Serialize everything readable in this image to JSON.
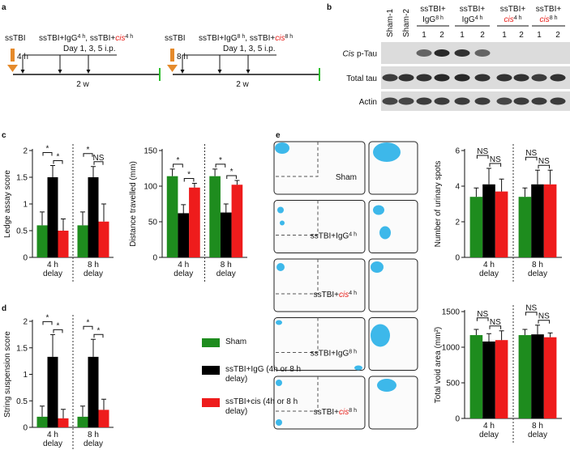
{
  "panel_labels": [
    "a",
    "b",
    "c",
    "d",
    "e"
  ],
  "timeline": [
    {
      "injury": "ssTBI",
      "delay": "4 h",
      "groups": [
        {
          "prefix": "ssTBI+",
          "agent": "IgG",
          "sup": "4 h"
        },
        {
          "prefix": "ssTBI+",
          "agent": "cis",
          "sup": "4 h",
          "agent_color": "#e8231e",
          "agent_italic": true
        }
      ],
      "separator": ", ",
      "schedule": "Day 1, 3, 5 i.p.",
      "duration": "2 w"
    },
    {
      "injury": "ssTBI",
      "delay": "8 h",
      "groups": [
        {
          "prefix": "ssTBI+",
          "agent": "IgG",
          "sup": "8 h"
        },
        {
          "prefix": "ssTBI+",
          "agent": "cis",
          "sup": "8 h",
          "agent_color": "#e8231e",
          "agent_italic": true
        }
      ],
      "separator": ", ",
      "schedule": "Day 1, 3, 5 i.p.",
      "duration": "2 w"
    }
  ],
  "blot": {
    "single_lanes": [
      "Sham-1",
      "Sham-2"
    ],
    "groups": [
      {
        "prefix": "ssTBI+",
        "agent": "IgG",
        "sup": "8 h",
        "lanes": [
          "1",
          "2"
        ]
      },
      {
        "prefix": "ssTBI+",
        "agent": "IgG",
        "sup": "4 h",
        "lanes": [
          "1",
          "2"
        ]
      },
      {
        "prefix": "ssTBI+",
        "agent": "cis",
        "sup": "4 h",
        "agent_color": "#e8231e",
        "agent_italic": true,
        "lanes": [
          "1",
          "2"
        ]
      },
      {
        "prefix": "ssTBI+",
        "agent": "cis",
        "sup": "8 h",
        "agent_color": "#e8231e",
        "agent_italic": true,
        "lanes": [
          "1",
          "2"
        ]
      }
    ],
    "rows": [
      {
        "agent": "Cis",
        "agent_italic": true,
        "suffix": "p-Tau"
      },
      {
        "agent": "Total tau"
      },
      {
        "agent": "Actin"
      }
    ]
  },
  "images": {
    "labels": [
      {
        "agent": "Sham"
      },
      {
        "prefix": "ssTBI+",
        "agent": "IgG",
        "sup": "4 h"
      },
      {
        "prefix": "ssTBI+",
        "agent": "cis",
        "sup": "4 h",
        "agent_color": "#e8231e",
        "agent_italic": true
      },
      {
        "prefix": "ssTBI+",
        "agent": "IgG",
        "sup": "8 h"
      },
      {
        "prefix": "ssTBI+",
        "agent": "cis",
        "sup": "8 h",
        "agent_color": "#e8231e",
        "agent_italic": true
      }
    ]
  },
  "chart_data": [
    {
      "type": "bar",
      "ylabel": "Ledge assay score",
      "categories": [
        "4 h delay",
        "8 h delay"
      ],
      "series": [
        {
          "color": "#1e8c1e",
          "values": [
            0.6,
            0.6
          ],
          "errors": [
            0.25,
            0.25
          ]
        },
        {
          "color": "#000000",
          "values": [
            1.5,
            1.5
          ],
          "errors": [
            0.22,
            0.2
          ]
        },
        {
          "color": "#ee1c1c",
          "values": [
            0.5,
            0.67
          ],
          "errors": [
            0.22,
            0.33
          ]
        }
      ],
      "ylim": [
        0,
        2
      ],
      "yticks": [
        0,
        0.5,
        1,
        1.5,
        2
      ],
      "significance": [
        [
          "*",
          "*"
        ],
        [
          "*",
          "NS"
        ]
      ]
    },
    {
      "type": "bar",
      "ylabel": "Distance travelled (mm)",
      "categories": [
        "4 h delay",
        "8 h delay"
      ],
      "series": [
        {
          "color": "#1e8c1e",
          "values": [
            114,
            114
          ],
          "errors": [
            10,
            10
          ]
        },
        {
          "color": "#000000",
          "values": [
            62,
            63
          ],
          "errors": [
            12,
            12
          ]
        },
        {
          "color": "#ee1c1c",
          "values": [
            98,
            102
          ],
          "errors": [
            6,
            6
          ]
        }
      ],
      "ylim": [
        0,
        150
      ],
      "yticks": [
        0,
        50,
        100,
        150
      ],
      "significance": [
        [
          "*",
          "*"
        ],
        [
          "*",
          "*"
        ]
      ]
    },
    {
      "type": "bar",
      "ylabel": "String suspension score",
      "categories": [
        "4 h delay",
        "8 h delay"
      ],
      "series": [
        {
          "name": "Sham",
          "color": "#1e8c1e",
          "values": [
            0.2,
            0.2
          ],
          "errors": [
            0.2,
            0.2
          ]
        },
        {
          "name": "ssTBI+IgG  (4h or 8 h delay)",
          "color": "#000000",
          "values": [
            1.33,
            1.33
          ],
          "errors": [
            0.42,
            0.33
          ]
        },
        {
          "name": "ssTBI+cis (4h or 8 h delay)",
          "color": "#ee1c1c",
          "values": [
            0.17,
            0.33
          ],
          "errors": [
            0.17,
            0.2
          ]
        }
      ],
      "ylim": [
        0,
        2
      ],
      "yticks": [
        0,
        0.5,
        1,
        1.5,
        2
      ],
      "significance": [
        [
          "*",
          "*"
        ],
        [
          "*",
          "*"
        ]
      ],
      "legend": "right"
    },
    {
      "type": "bar",
      "ylabel": "Number of urinary spots",
      "categories": [
        "4 h delay",
        "8 h delay"
      ],
      "series": [
        {
          "color": "#1e8c1e",
          "values": [
            3.4,
            3.4
          ],
          "errors": [
            0.5,
            0.5
          ]
        },
        {
          "color": "#000000",
          "values": [
            4.1,
            4.1
          ],
          "errors": [
            0.9,
            0.8
          ]
        },
        {
          "color": "#ee1c1c",
          "values": [
            3.7,
            4.1
          ],
          "errors": [
            0.7,
            0.8
          ]
        }
      ],
      "ylim": [
        0,
        6
      ],
      "yticks": [
        0,
        2,
        4,
        6
      ],
      "significance": [
        [
          "NS",
          "NS"
        ],
        [
          "NS",
          "NS"
        ]
      ]
    },
    {
      "type": "bar",
      "ylabel": "Total void area (mm²)",
      "categories": [
        "4 h delay",
        "8 h delay"
      ],
      "series": [
        {
          "color": "#1e8c1e",
          "values": [
            1170,
            1170
          ],
          "errors": [
            80,
            80
          ]
        },
        {
          "color": "#000000",
          "values": [
            1080,
            1180
          ],
          "errors": [
            110,
            130
          ]
        },
        {
          "color": "#ee1c1c",
          "values": [
            1100,
            1140
          ],
          "errors": [
            130,
            60
          ]
        }
      ],
      "ylim": [
        0,
        1500
      ],
      "yticks": [
        0,
        500,
        1000,
        1500
      ],
      "significance": [
        [
          "NS",
          "NS"
        ],
        [
          "NS",
          "NS"
        ]
      ]
    }
  ]
}
